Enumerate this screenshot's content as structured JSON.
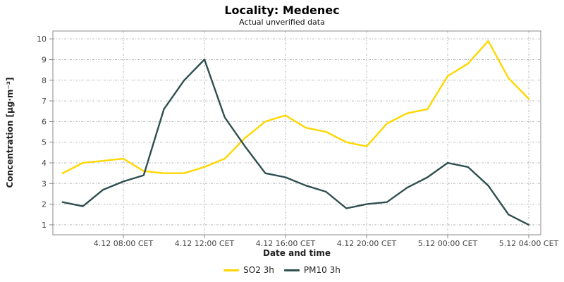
{
  "header": {
    "title": "Locality: Medenec",
    "subtitle": "Actual unverified data"
  },
  "chart_data": {
    "type": "line",
    "title": "Locality: Medenec",
    "subtitle": "Actual unverified data",
    "xlabel": "Date and time",
    "ylabel": "Concentration [µg·m⁻³]",
    "yticks": [
      1,
      2,
      3,
      4,
      5,
      6,
      7,
      8,
      9,
      10
    ],
    "ylim": [
      0.52,
      10.38
    ],
    "grid": true,
    "legend_position": "bottom",
    "x": [
      "4.12 05:00",
      "4.12 06:00",
      "4.12 07:00",
      "4.12 08:00",
      "4.12 09:00",
      "4.12 10:00",
      "4.12 11:00",
      "4.12 12:00",
      "4.12 13:00",
      "4.12 14:00",
      "4.12 15:00",
      "4.12 16:00",
      "4.12 17:00",
      "4.12 18:00",
      "4.12 19:00",
      "4.12 20:00",
      "4.12 21:00",
      "4.12 22:00",
      "4.12 23:00",
      "5.12 00:00",
      "5.12 01:00",
      "5.12 02:00",
      "5.12 03:00",
      "5.12 04:00"
    ],
    "x_tick_indices": [
      3,
      7,
      11,
      15,
      19,
      23
    ],
    "x_tick_labels": [
      "4.12 08:00 CET",
      "4.12 12:00 CET",
      "4.12 16:00 CET",
      "4.12 20:00 CET",
      "5.12 00:00 CET",
      "5.12 04:00 CET"
    ],
    "series": [
      {
        "name": "SO2 3h",
        "color": "#FFD700",
        "values": [
          3.5,
          4.0,
          4.1,
          4.2,
          3.6,
          3.5,
          3.5,
          3.8,
          4.2,
          5.2,
          6.0,
          6.3,
          5.7,
          5.5,
          5.0,
          4.8,
          5.9,
          6.4,
          6.6,
          8.2,
          8.8,
          9.9,
          8.1,
          7.1
        ]
      },
      {
        "name": "PM10 3h",
        "color": "#2F4F4F",
        "values": [
          2.1,
          1.9,
          2.7,
          3.1,
          3.4,
          6.6,
          8.0,
          9.0,
          6.2,
          4.8,
          3.5,
          3.3,
          2.9,
          2.6,
          1.8,
          2.0,
          2.1,
          2.8,
          3.3,
          4.0,
          3.8,
          2.9,
          1.5,
          1.0
        ]
      }
    ],
    "colors": {
      "grid": "#BBBBBB",
      "border": "#888888",
      "tick_text": "#444444",
      "background": "#FFFFFF"
    }
  }
}
